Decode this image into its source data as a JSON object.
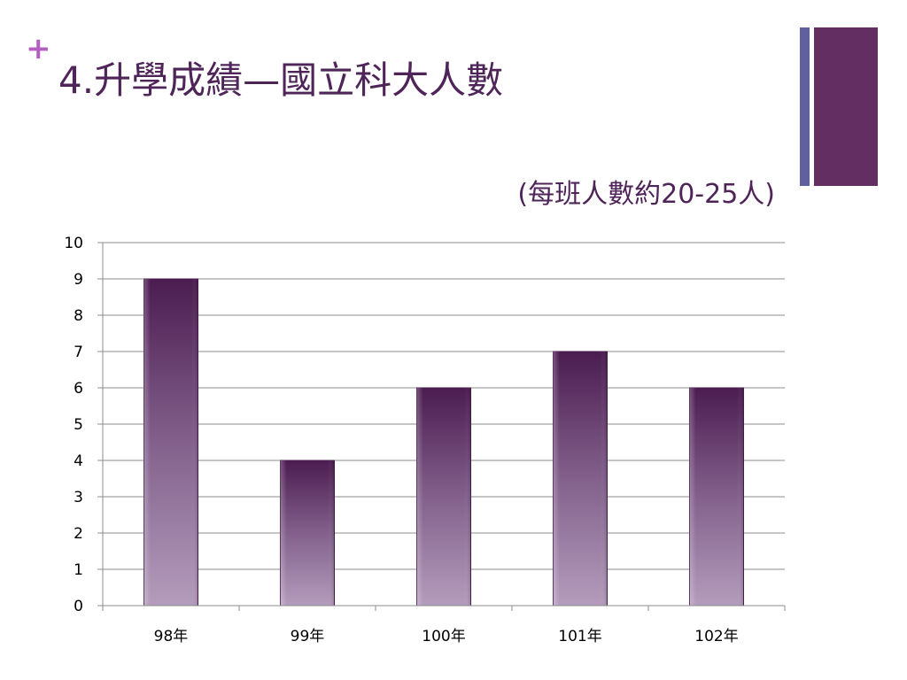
{
  "slide": {
    "plus_glyph": "+",
    "title": "4.升學成績—國立科大人數",
    "subtitle": "(每班人數約20-25人)",
    "accent_colors": [
      "#60609e",
      "#632f62"
    ]
  },
  "chart_data": {
    "type": "bar",
    "categories": [
      "98年",
      "99年",
      "100年",
      "101年",
      "102年"
    ],
    "values": [
      9,
      4,
      6,
      7,
      6
    ],
    "title": "",
    "xlabel": "",
    "ylabel": "",
    "ylim": [
      0,
      10
    ],
    "yticks": [
      0,
      1,
      2,
      3,
      4,
      5,
      6,
      7,
      8,
      9,
      10
    ],
    "grid": true,
    "legend": "none",
    "bar_color_top": "#4b1c50",
    "bar_color_bottom": "#b49cbc"
  }
}
